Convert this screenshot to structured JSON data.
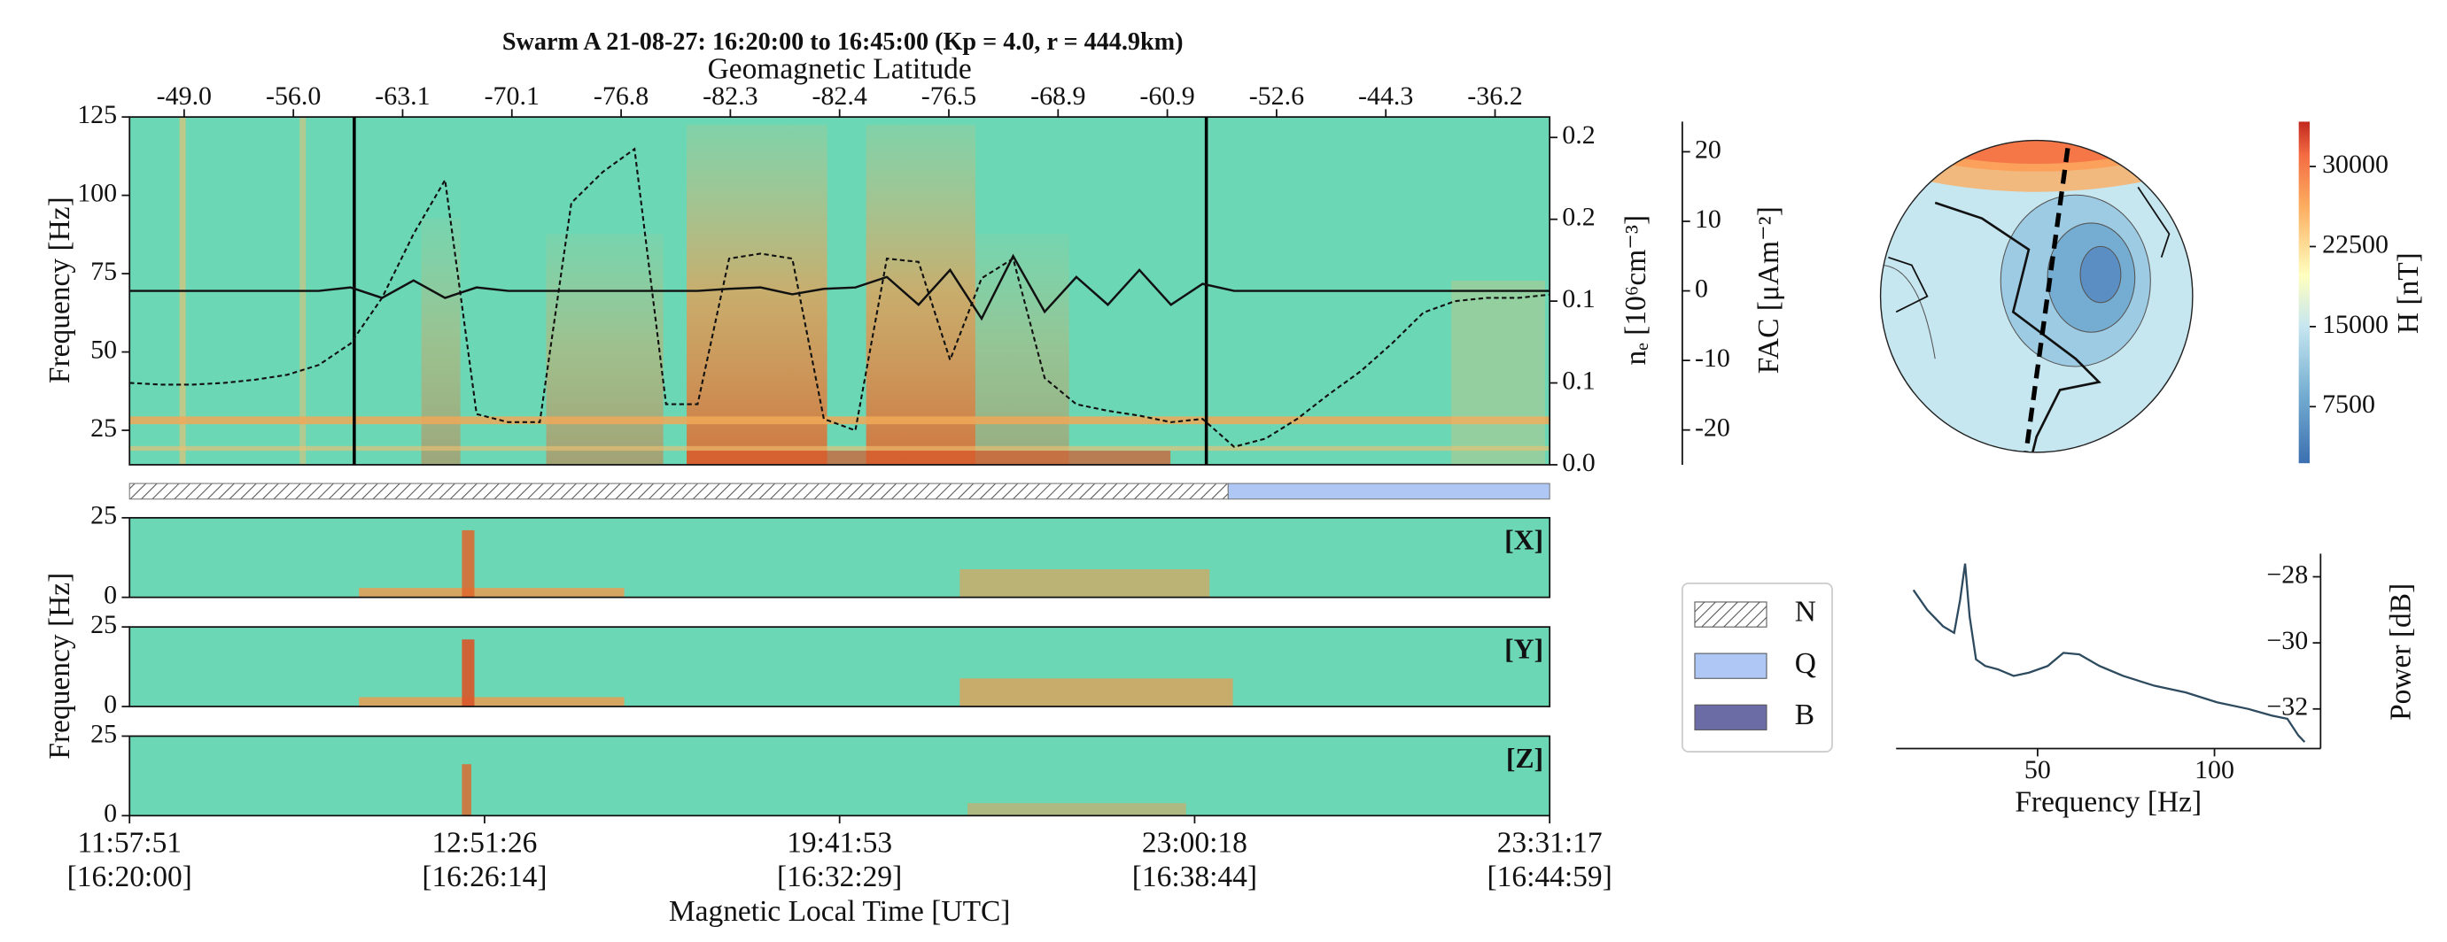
{
  "chart_data": [
    {
      "type": "spectrogram",
      "title": "Swarm A 21-08-27: 16:20:00 to 16:45:00 (Kp = 4.0, r = 444.9km)",
      "top_xlabel": "Geomagnetic Latitude",
      "top_xticks": [
        "-49.0",
        "-56.0",
        "-63.1",
        "-70.1",
        "-76.8",
        "-82.3",
        "-82.4",
        "-76.5",
        "-68.9",
        "-60.9",
        "-52.6",
        "-44.3",
        "-36.2"
      ],
      "ylabel": "Frequency [Hz]",
      "ylim": [
        14,
        125
      ],
      "yticks": [
        25,
        50,
        75,
        100,
        125
      ],
      "y2label": "nₑ [10⁶cm⁻³]",
      "y2lim": [
        0,
        0.2125
      ],
      "y2ticks": [
        {
          "value": 0,
          "label": "0.0"
        },
        {
          "value": 0.05,
          "label": "0.1"
        },
        {
          "value": 0.1,
          "label": "0.1"
        },
        {
          "value": 0.15,
          "label": "0.2"
        },
        {
          "value": 0.2,
          "label": "0.2"
        }
      ],
      "y3label": "FAC [μAm⁻²]",
      "y3lim": [
        -25,
        25
      ],
      "y3ticks": [
        -20,
        -10,
        0,
        10,
        20
      ],
      "series": [
        {
          "axis": "y2",
          "style": "dashed",
          "color": "#111111",
          "values": [
            0.05,
            0.049,
            0.049,
            0.05,
            0.052,
            0.055,
            0.061,
            0.074,
            0.102,
            0.141,
            0.174,
            0.031,
            0.026,
            0.026,
            0.16,
            0.179,
            0.193,
            0.037,
            0.037,
            0.126,
            0.129,
            0.126,
            0.028,
            0.021,
            0.126,
            0.124,
            0.064,
            0.114,
            0.126,
            0.053,
            0.037,
            0.033,
            0.03,
            0.026,
            0.028,
            0.011,
            0.016,
            0.028,
            0.043,
            0.057,
            0.074,
            0.093,
            0.1,
            0.102,
            0.102,
            0.104
          ]
        },
        {
          "axis": "y3",
          "style": "solid",
          "color": "#111111",
          "values": [
            0,
            0,
            0,
            0,
            0,
            0,
            0,
            0.5,
            -1,
            1.5,
            -1,
            0.5,
            0,
            0,
            0,
            0,
            0,
            0,
            0,
            0.3,
            0.5,
            -0.5,
            0.3,
            0.5,
            2,
            -2,
            3,
            -4,
            5,
            -3,
            2,
            -2,
            3,
            -2,
            1,
            0,
            0,
            0,
            0,
            0,
            0,
            0,
            0,
            0,
            0,
            0
          ]
        }
      ],
      "state_legend": [
        {
          "label": "N",
          "color": "hatch"
        },
        {
          "label": "Q",
          "color": "#aec7f4"
        },
        {
          "label": "B",
          "color": "#6b6ba6"
        }
      ]
    },
    {
      "type": "spectrogram-stack",
      "panels": [
        "[X]",
        "[Y]",
        "[Z]"
      ],
      "ylabel": "Frequency [Hz]",
      "ylim": [
        0,
        25
      ],
      "yticks": [
        0,
        25
      ],
      "xticks": [
        {
          "mlt": "11:57:51",
          "utc": "[16:20:00]"
        },
        {
          "mlt": "12:51:26",
          "utc": "[16:26:14]"
        },
        {
          "mlt": "19:41:53",
          "utc": "[16:32:29]"
        },
        {
          "mlt": "23:00:18",
          "utc": "[16:38:44]"
        },
        {
          "mlt": "23:31:17",
          "utc": "[16:44:59]"
        }
      ],
      "xlabel": "Magnetic Local Time [UTC]"
    },
    {
      "type": "map",
      "colorbar_label": "H [nT]",
      "clim": [
        2200,
        34200
      ],
      "cticks": [
        7500,
        15000,
        22500,
        30000
      ]
    },
    {
      "type": "line",
      "color": "#2d4a5e",
      "x": [
        14.9,
        18.8,
        23.3,
        26.4,
        28.1,
        29.5,
        30.8,
        32.6,
        35.2,
        38.8,
        43.2,
        47.6,
        52.9,
        57.3,
        61.8,
        67.5,
        74.2,
        83.0,
        91.9,
        100.7,
        109.6,
        116.2,
        120.6,
        123.7,
        125.5
      ],
      "values": [
        -28.4,
        -29.0,
        -29.5,
        -29.7,
        -28.7,
        -27.6,
        -29.2,
        -30.5,
        -30.7,
        -30.8,
        -31.0,
        -30.9,
        -30.7,
        -30.3,
        -30.35,
        -30.7,
        -31.0,
        -31.3,
        -31.5,
        -31.8,
        -32.0,
        -32.2,
        -32.3,
        -32.8,
        -33.0
      ],
      "xlim": [
        10,
        130
      ],
      "xticks": [
        50,
        100
      ],
      "xlabel": "Frequency [Hz]",
      "ylim": [
        -33.2,
        -27.3
      ],
      "yticks": [
        {
          "value": -28,
          "label": "−28"
        },
        {
          "value": -30,
          "label": "−30"
        },
        {
          "value": -32,
          "label": "−32"
        }
      ],
      "ylabel": "Power [dB]"
    }
  ]
}
